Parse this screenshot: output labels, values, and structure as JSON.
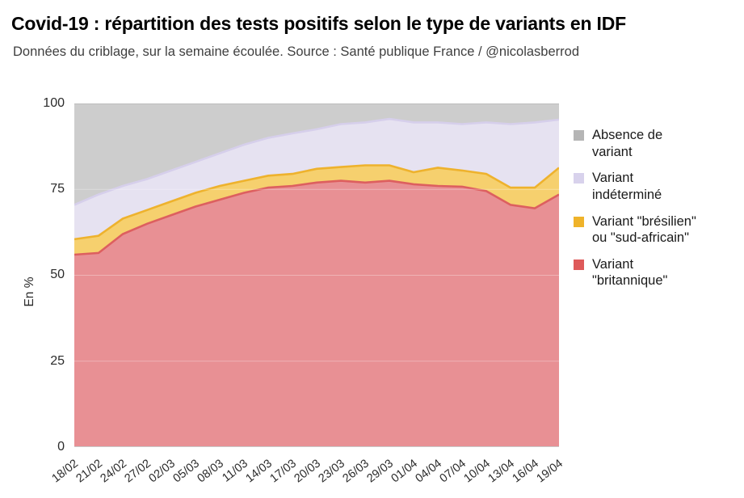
{
  "header": {
    "title": "Covid-19 : répartition des tests positifs selon le type de variants en IDF",
    "subtitle": "Données du criblage, sur la semaine écoulée. Source : Santé publique France / @nicolasberrod"
  },
  "y_axis": {
    "label": "En %",
    "ticks": {
      "t100": "100",
      "t75": "75",
      "t50": "50",
      "t25": "25",
      "t0": "0"
    }
  },
  "legend": {
    "items": [
      {
        "label": "Absence de variant",
        "label_lines": [
          "Absence de",
          "variant"
        ],
        "color": "#b5b5b5"
      },
      {
        "label": "Variant indéterminé",
        "label_lines": [
          "Variant",
          "indéterminé"
        ],
        "color": "#d8d2ec"
      },
      {
        "label": "Variant \"brésilien\" ou \"sud-africain\"",
        "label_lines": [
          "Variant \"brésilien\"",
          "ou \"sud-africain\""
        ],
        "color": "#efb32a"
      },
      {
        "label": "Variant \"britannique\"",
        "label_lines": [
          "Variant",
          "\"britannique\""
        ],
        "color": "#de5a5a"
      }
    ]
  },
  "chart_data": {
    "type": "area",
    "stacked": true,
    "title": "Covid-19 : répartition des tests positifs selon le type de variants en IDF",
    "xlabel": "",
    "ylabel": "En %",
    "ylim": [
      0,
      100
    ],
    "grid": "horizontal",
    "legend_position": "right",
    "x": [
      "18/02",
      "21/02",
      "24/02",
      "27/02",
      "02/03",
      "05/03",
      "08/03",
      "11/03",
      "14/03",
      "17/03",
      "20/03",
      "23/03",
      "26/03",
      "29/03",
      "01/04",
      "04/04",
      "07/04",
      "10/04",
      "13/04",
      "16/04",
      "19/04"
    ],
    "series": [
      {
        "name": "Variant \"britannique\"",
        "fill": "#e89094",
        "stroke": "#dd5f5f",
        "values": [
          56,
          56.5,
          62,
          65,
          67.5,
          70,
          72,
          74,
          75.5,
          76,
          77,
          77.5,
          77,
          77.5,
          76.5,
          76,
          75.8,
          74.5,
          70.5,
          69.5,
          73.5
        ]
      },
      {
        "name": "Variant \"brésilien\" ou \"sud-africain\"",
        "fill": "#f6d06e",
        "stroke": "#eeb22d",
        "values": [
          4.5,
          5,
          4.5,
          4,
          4,
          4,
          4,
          3.5,
          3.5,
          3.5,
          4,
          4,
          5,
          4.5,
          3.5,
          5.3,
          4.7,
          5,
          5,
          6,
          7.8
        ]
      },
      {
        "name": "Variant indéterminé",
        "fill": "#e6e2f1",
        "stroke": "#d6cfeb",
        "values": [
          10,
          12,
          9.5,
          9,
          9,
          9,
          9.5,
          10.5,
          11,
          11.8,
          11.5,
          12.5,
          12.5,
          13.5,
          14.5,
          13.2,
          13.5,
          15,
          18.5,
          19,
          14
        ]
      },
      {
        "name": "Absence de variant",
        "fill": "#cdcdcd",
        "stroke": "#bdbdbd",
        "values": [
          29.5,
          26.5,
          24,
          22,
          19.5,
          17,
          14.5,
          12,
          10,
          8.7,
          7.5,
          6,
          5.5,
          4.5,
          5.5,
          5.5,
          6,
          5.5,
          6,
          5.5,
          4.7
        ]
      }
    ]
  }
}
